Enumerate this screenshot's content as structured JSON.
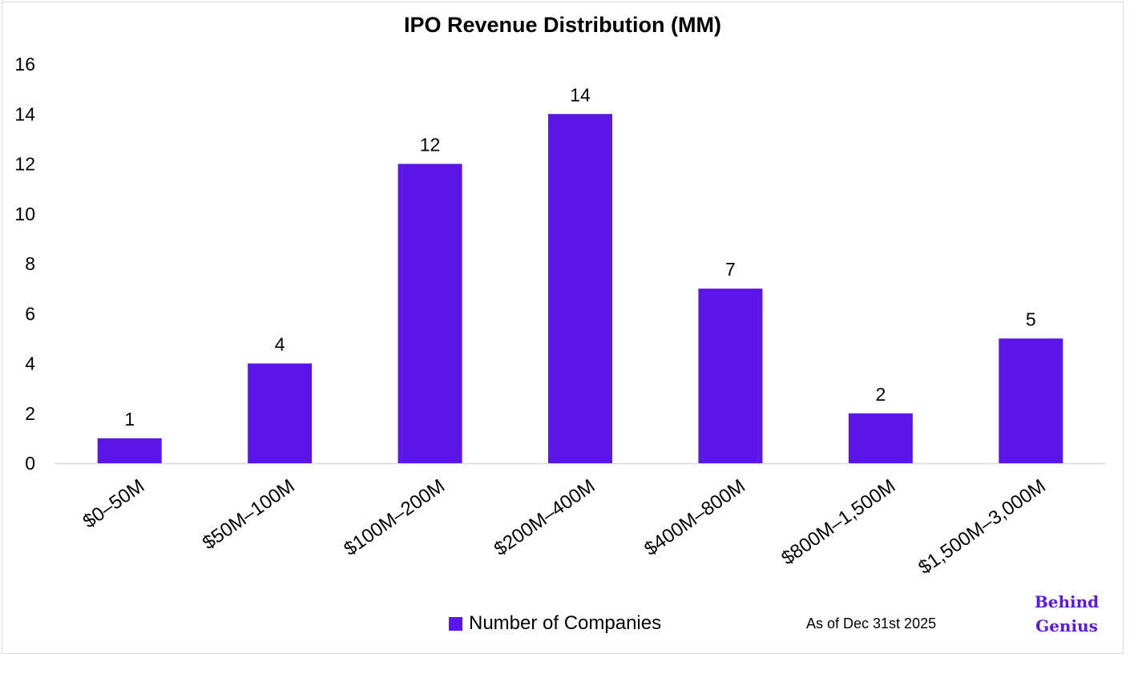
{
  "chart_data": {
    "type": "bar",
    "title": "IPO Revenue Distribution (MM)",
    "categories": [
      "$0–50M",
      "$50M–100M",
      "$100M–200M",
      "$200M–400M",
      "$400M–800M",
      "$800M–1,500M",
      "$1,500M–3,000M"
    ],
    "series": [
      {
        "name": "Number of Companies",
        "values": [
          1,
          4,
          12,
          14,
          7,
          2,
          5
        ]
      }
    ],
    "ylim": [
      0,
      16
    ],
    "yticks": [
      0,
      2,
      4,
      6,
      8,
      10,
      12,
      14,
      16
    ],
    "xlabel": "",
    "ylabel": "",
    "grid": false,
    "legend_position": "bottom",
    "bar_color": "#5b17e8"
  },
  "footnote": "As of Dec 31st 2025",
  "brand": {
    "line1": "Behind",
    "line2": "Genius"
  }
}
